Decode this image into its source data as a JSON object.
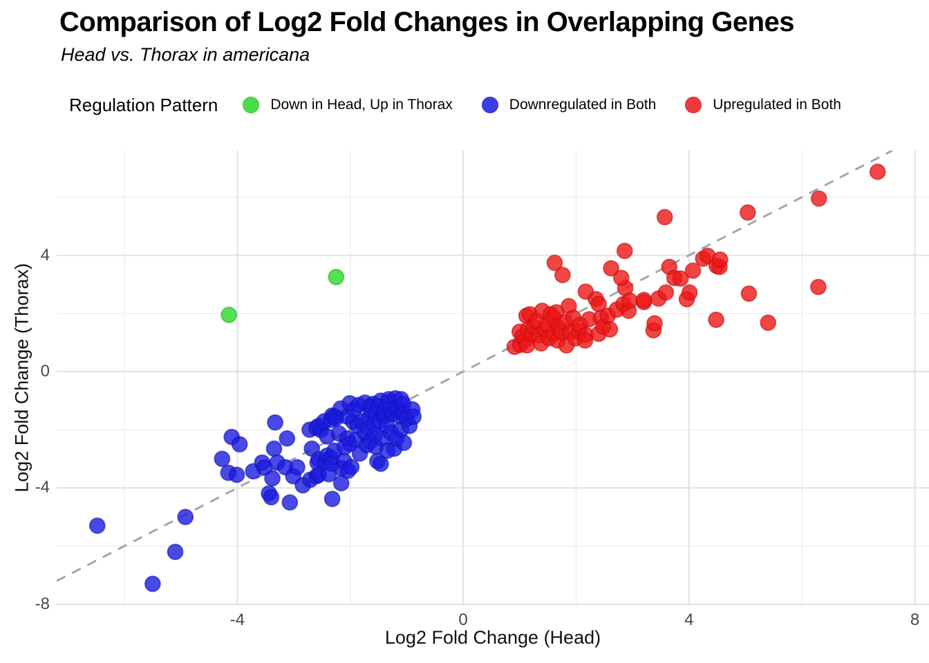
{
  "header": {
    "title": "Comparison of Log2 Fold Changes in Overlapping Genes",
    "subtitle": "Head vs. Thorax in americana"
  },
  "legend": {
    "title": "Regulation Pattern",
    "items": [
      {
        "label": "Down in Head, Up in Thorax",
        "color": "#2bd82b",
        "stroke": "#1fae1f"
      },
      {
        "label": "Downregulated in Both",
        "color": "#1b1be0",
        "stroke": "#1212b4"
      },
      {
        "label": "Upregulated in Both",
        "color": "#ee1616",
        "stroke": "#bf0f0f"
      }
    ]
  },
  "chart_data": {
    "type": "scatter",
    "title": "Comparison of Log2 Fold Changes in Overlapping Genes",
    "subtitle": "Head vs. Thorax in americana",
    "xlabel": "Log2 Fold Change (Head)",
    "ylabel": "Log2 Fold Change (Thorax)",
    "xlim": [
      -7.2,
      8.25
    ],
    "ylim": [
      -8.05,
      7.6
    ],
    "x_ticks": [
      -4,
      0,
      4,
      8
    ],
    "y_ticks": [
      -8,
      -4,
      0,
      4
    ],
    "x_minor_gridlines": [
      -6,
      -2,
      2,
      6
    ],
    "y_minor_gridlines": [
      -6,
      -2,
      2,
      6
    ],
    "grid": true,
    "legend_position": "top",
    "point_radius": 11,
    "reference_line": {
      "slope": 1,
      "intercept": 0,
      "style": "dashed",
      "color": "#a6a6a6"
    },
    "series": [
      {
        "name": "Down in Head, Up in Thorax",
        "color": "#2bd82b",
        "stroke": "#1fae1f",
        "points": [
          [
            -4.15,
            1.95
          ],
          [
            -2.25,
            3.25
          ]
        ]
      },
      {
        "name": "Downregulated in Both",
        "color": "#1b1be0",
        "stroke": "#1212b4",
        "points": [
          [
            -6.48,
            -5.3
          ],
          [
            -5.5,
            -7.3
          ],
          [
            -5.1,
            -6.2
          ],
          [
            -4.92,
            -5.0
          ],
          [
            -4.27,
            -3.0
          ],
          [
            -4.16,
            -3.48
          ],
          [
            -4.1,
            -2.25
          ],
          [
            -4.01,
            -3.55
          ],
          [
            -3.96,
            -2.5
          ],
          [
            -3.72,
            -3.43
          ],
          [
            -3.56,
            -3.13
          ],
          [
            -3.52,
            -3.3
          ],
          [
            -3.44,
            -4.19
          ],
          [
            -3.4,
            -4.32
          ],
          [
            -3.38,
            -3.67
          ],
          [
            -3.35,
            -2.65
          ],
          [
            -3.33,
            -1.75
          ],
          [
            -3.29,
            -3.13
          ],
          [
            -3.15,
            -3.29
          ],
          [
            -3.12,
            -2.3
          ],
          [
            -3.07,
            -4.5
          ],
          [
            -3.01,
            -3.6
          ],
          [
            -2.94,
            -3.29
          ],
          [
            -2.84,
            -3.91
          ],
          [
            -2.72,
            -2.0
          ],
          [
            -2.71,
            -3.72
          ],
          [
            -2.68,
            -2.65
          ],
          [
            -2.6,
            -1.93
          ],
          [
            -2.6,
            -3.6
          ],
          [
            -2.58,
            -3.13
          ],
          [
            -2.56,
            -1.87
          ],
          [
            -2.56,
            -3.01
          ],
          [
            -2.56,
            -3.55
          ],
          [
            -2.52,
            -2.01
          ],
          [
            -2.46,
            -1.71
          ],
          [
            -2.44,
            -3.13
          ],
          [
            -2.41,
            -2.23
          ],
          [
            -2.41,
            -2.89
          ],
          [
            -2.38,
            -3.53
          ],
          [
            -2.34,
            -1.66
          ],
          [
            -2.34,
            -2.96
          ],
          [
            -2.32,
            -1.51
          ],
          [
            -2.32,
            -3.17
          ],
          [
            -2.32,
            -4.38
          ],
          [
            -2.28,
            -1.54
          ],
          [
            -2.28,
            -2.72
          ],
          [
            -2.25,
            -1.6
          ],
          [
            -2.2,
            -2.13
          ],
          [
            -2.17,
            -1.27
          ],
          [
            -2.16,
            -3.32
          ],
          [
            -2.16,
            -3.84
          ],
          [
            -2.11,
            -3.08
          ],
          [
            -2.05,
            -2.3
          ],
          [
            -2.04,
            -3.41
          ],
          [
            -2.01,
            -2.49
          ],
          [
            -1.98,
            -3.28
          ],
          [
            -2.1,
            -2.6
          ],
          [
            -2.05,
            -1.55
          ],
          [
            -2.01,
            -1.09
          ],
          [
            -1.95,
            -1.72
          ],
          [
            -1.93,
            -1.3
          ],
          [
            -1.9,
            -2.35
          ],
          [
            -1.87,
            -1.87
          ],
          [
            -1.85,
            -1.15
          ],
          [
            -1.83,
            -2.82
          ],
          [
            -1.79,
            -1.71
          ],
          [
            -1.74,
            -1.07
          ],
          [
            -1.74,
            -2.11
          ],
          [
            -1.71,
            -2.53
          ],
          [
            -1.68,
            -1.95
          ],
          [
            -1.67,
            -1.59
          ],
          [
            -1.65,
            -1.19
          ],
          [
            -1.65,
            -2.4
          ],
          [
            -1.62,
            -1.35
          ],
          [
            -1.59,
            -1.11
          ],
          [
            -1.58,
            -1.82
          ],
          [
            -1.56,
            -2.18
          ],
          [
            -1.55,
            -1.47
          ],
          [
            -1.55,
            -2.58
          ],
          [
            -1.52,
            -3.08
          ],
          [
            -1.5,
            -1.2
          ],
          [
            -1.48,
            -1.7
          ],
          [
            -1.46,
            -1.0
          ],
          [
            -1.46,
            -3.17
          ],
          [
            -1.44,
            -2.3
          ],
          [
            -1.4,
            -1.4
          ],
          [
            -1.38,
            -1.52
          ],
          [
            -1.35,
            -1.85
          ],
          [
            -1.34,
            -2.72
          ],
          [
            -1.32,
            -0.95
          ],
          [
            -1.3,
            -1.05
          ],
          [
            -1.28,
            -1.3
          ],
          [
            -1.28,
            -2.1
          ],
          [
            -1.25,
            -1.45
          ],
          [
            -1.22,
            -2.65
          ],
          [
            -1.2,
            -0.92
          ],
          [
            -1.18,
            -1.23
          ],
          [
            -1.18,
            -2.3
          ],
          [
            -1.15,
            -1.35
          ],
          [
            -1.12,
            -1.54
          ],
          [
            -1.1,
            -0.95
          ],
          [
            -1.1,
            -1.99
          ],
          [
            -1.06,
            -1.11
          ],
          [
            -1.05,
            -1.45
          ],
          [
            -1.05,
            -2.45
          ],
          [
            -1.0,
            -1.63
          ],
          [
            -0.95,
            -1.87
          ],
          [
            -0.9,
            -1.3
          ],
          [
            -0.88,
            -1.55
          ]
        ]
      },
      {
        "name": "Upregulated in Both",
        "color": "#ee1616",
        "stroke": "#bf0f0f",
        "points": [
          [
            0.91,
            0.85
          ],
          [
            1.0,
            1.37
          ],
          [
            1.01,
            0.92
          ],
          [
            1.05,
            1.2
          ],
          [
            1.1,
            1.09
          ],
          [
            1.12,
            1.92
          ],
          [
            1.13,
            0.9
          ],
          [
            1.15,
            1.45
          ],
          [
            1.18,
            1.97
          ],
          [
            1.22,
            1.3
          ],
          [
            1.25,
            1.55
          ],
          [
            1.3,
            1.75
          ],
          [
            1.35,
            1.25
          ],
          [
            1.38,
            0.97
          ],
          [
            1.4,
            2.09
          ],
          [
            1.45,
            1.45
          ],
          [
            1.49,
            1.61
          ],
          [
            1.52,
            1.15
          ],
          [
            1.55,
            1.97
          ],
          [
            1.6,
            1.3
          ],
          [
            1.6,
            1.85
          ],
          [
            1.65,
            2.04
          ],
          [
            1.67,
            1.07
          ],
          [
            1.7,
            1.5
          ],
          [
            1.74,
            1.37
          ],
          [
            1.8,
            1.7
          ],
          [
            1.83,
            0.9
          ],
          [
            1.87,
            2.25
          ],
          [
            1.9,
            1.35
          ],
          [
            1.95,
            1.85
          ],
          [
            1.99,
            1.14
          ],
          [
            2.05,
            1.38
          ],
          [
            2.07,
            1.61
          ],
          [
            2.17,
            1.26
          ],
          [
            2.16,
            1.07
          ],
          [
            2.17,
            2.75
          ],
          [
            2.23,
            1.8
          ],
          [
            2.35,
            2.49
          ],
          [
            2.4,
            1.3
          ],
          [
            2.4,
            2.32
          ],
          [
            2.44,
            1.85
          ],
          [
            2.48,
            1.54
          ],
          [
            2.56,
            1.92
          ],
          [
            2.6,
            1.45
          ],
          [
            2.72,
            2.13
          ],
          [
            2.84,
            2.32
          ],
          [
            2.87,
            2.87
          ],
          [
            2.93,
            2.09
          ],
          [
            2.95,
            2.44
          ],
          [
            3.2,
            2.39
          ],
          [
            3.2,
            2.46
          ],
          [
            3.37,
            1.42
          ],
          [
            3.39,
            1.66
          ],
          [
            3.46,
            2.51
          ],
          [
            3.59,
            2.72
          ],
          [
            1.62,
            3.74
          ],
          [
            1.76,
            3.32
          ],
          [
            2.62,
            3.55
          ],
          [
            2.8,
            3.22
          ],
          [
            2.86,
            4.15
          ],
          [
            3.57,
            5.31
          ],
          [
            3.65,
            3.6
          ],
          [
            3.74,
            3.22
          ],
          [
            3.85,
            3.2
          ],
          [
            3.96,
            2.49
          ],
          [
            4.01,
            2.72
          ],
          [
            4.07,
            3.47
          ],
          [
            4.25,
            3.88
          ],
          [
            4.33,
            3.98
          ],
          [
            4.48,
            1.78
          ],
          [
            4.49,
            3.63
          ],
          [
            4.54,
            3.6
          ],
          [
            4.55,
            3.85
          ],
          [
            5.04,
            5.47
          ],
          [
            5.06,
            2.68
          ],
          [
            5.4,
            1.68
          ],
          [
            6.29,
            2.91
          ],
          [
            6.3,
            5.95
          ],
          [
            7.34,
            6.87
          ]
        ]
      }
    ]
  }
}
